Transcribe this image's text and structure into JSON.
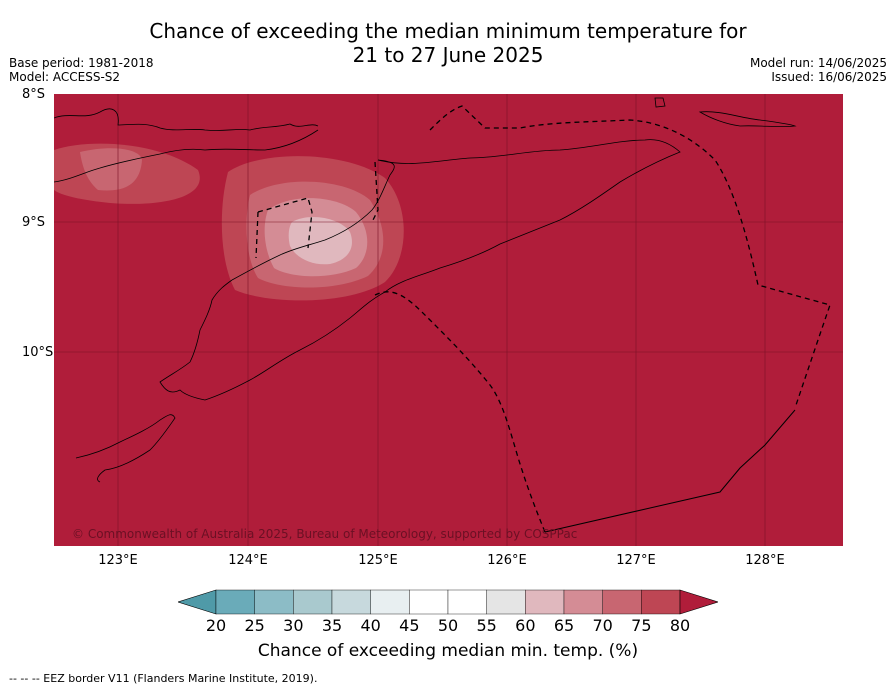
{
  "title_line1": "Chance of exceeding the median minimum temperature for",
  "title_line2": "21 to 27 June 2025",
  "base_period": "Base period: 1981-2018",
  "model": "Model: ACCESS-S2",
  "model_run": "Model run: 14/06/2025",
  "issued": "Issued: 16/06/2025",
  "lat_labels": [
    "8°S",
    "9°S",
    "10°S"
  ],
  "lon_labels": [
    "123°E",
    "124°E",
    "125°E",
    "126°E",
    "127°E",
    "128°E"
  ],
  "copyright": "© Commonwealth of Australia 2025, Bureau of Meteorology, supported by COSPPac",
  "colorbar": {
    "ticks": [
      "20",
      "25",
      "30",
      "35",
      "40",
      "45",
      "50",
      "55",
      "60",
      "65",
      "70",
      "75",
      "80"
    ],
    "colors": [
      "#4f9aa8",
      "#6aabb9",
      "#8cbcc6",
      "#a9c9ce",
      "#c7d9dd",
      "#e8eff1",
      "#ffffff",
      "#ffffff",
      "#e5e5e5",
      "#e0b8be",
      "#d48c95",
      "#c86671",
      "#be4654",
      "#b01d3a"
    ],
    "label": "Chance of exceeding median min. temp. (%)"
  },
  "legend_text": "--  --  -- EEZ border V11 (Flanders Marine Institute, 2019).",
  "colors": {
    "background": "#b01d3a",
    "grid": "#7a1225"
  }
}
